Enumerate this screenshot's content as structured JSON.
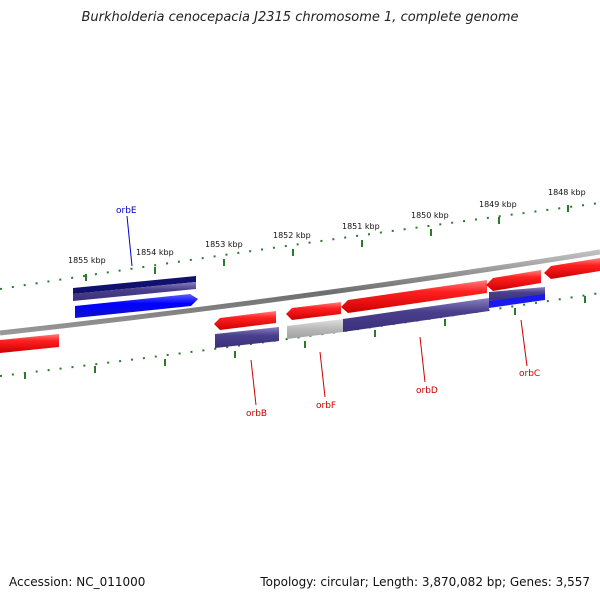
{
  "title": "Burkholderia cenocepacia J2315 chromosome 1, complete genome",
  "footer": {
    "accession": "Accession: NC_011000",
    "summary": "Topology: circular; Length: 3,870,082 bp; Genes: 3,557"
  },
  "colors": {
    "backbone": "#808080",
    "forward_feature": "#ee1111",
    "gene_blue": "#1a1aee",
    "gene_dark": "#10106e",
    "cds_purple": "#4a3f8c",
    "grey_feature": "#b5b5b5",
    "tick": "#2a7a2a",
    "label_red": "#cc0000",
    "label_blue": "#0000cc"
  },
  "ticks": [
    {
      "label": "1855 kbp"
    },
    {
      "label": "1854 kbp"
    },
    {
      "label": "1853 kbp"
    },
    {
      "label": "1852 kbp"
    },
    {
      "label": "1851 kbp"
    },
    {
      "label": "1850 kbp"
    },
    {
      "label": "1849 kbp"
    },
    {
      "label": "1848 kbp"
    }
  ],
  "genes": [
    {
      "label": "orbE",
      "color": "blue"
    },
    {
      "label": "orbB",
      "color": "red"
    },
    {
      "label": "orbF",
      "color": "red"
    },
    {
      "label": "orbD",
      "color": "red"
    },
    {
      "label": "orbC",
      "color": "red"
    }
  ]
}
